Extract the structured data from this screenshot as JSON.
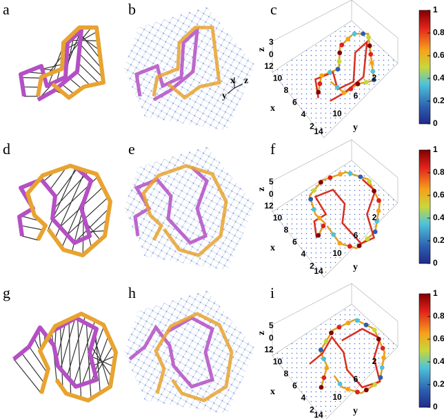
{
  "panels": [
    {
      "label": "a"
    },
    {
      "label": "b",
      "axes": [
        "x",
        "z",
        "y"
      ]
    },
    {
      "label": "c",
      "z_label": "z",
      "z_ticks": [
        3,
        0
      ],
      "x_label": "x",
      "x_ticks": [
        12,
        10,
        8,
        6,
        4,
        2
      ],
      "y_label": "y",
      "y_ticks": [
        14,
        10,
        6,
        2
      ],
      "colorbar_ticks": [
        1,
        0.8,
        0.6,
        0.4,
        0.2,
        0
      ]
    },
    {
      "label": "d"
    },
    {
      "label": "e"
    },
    {
      "label": "f",
      "z_label": "z",
      "z_ticks": [
        5,
        0
      ],
      "x_label": "x",
      "x_ticks": [
        12,
        10,
        8,
        6,
        4,
        2
      ],
      "y_label": "y",
      "y_ticks": [
        14,
        10,
        6,
        2
      ],
      "colorbar_ticks": [
        1,
        0.8,
        0.6,
        0.4,
        0.2,
        0
      ]
    },
    {
      "label": "g"
    },
    {
      "label": "h"
    },
    {
      "label": "i",
      "z_label": "z",
      "z_ticks": [
        5,
        0
      ],
      "x_label": "x",
      "x_ticks": [
        12,
        10,
        8,
        6,
        4,
        2
      ],
      "y_label": "y",
      "y_ticks": [
        14,
        10,
        6,
        2
      ],
      "colorbar_ticks": [
        1,
        0.8,
        0.6,
        0.4,
        0.2,
        0
      ]
    }
  ]
}
